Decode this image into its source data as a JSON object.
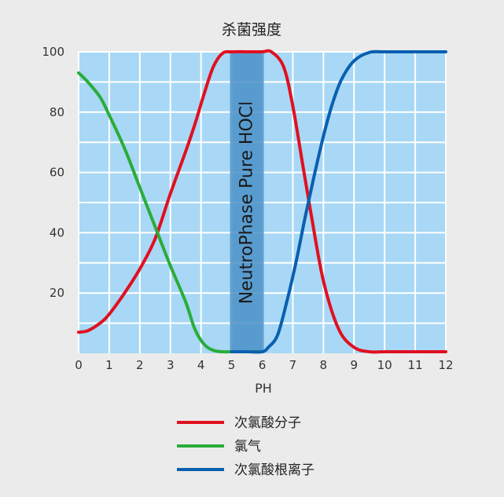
{
  "chart_data": {
    "type": "line",
    "title": "杀菌强度",
    "xlabel": "PH",
    "ylabel": "",
    "xlim": [
      0,
      12
    ],
    "ylim": [
      0,
      100
    ],
    "x_ticks": [
      0,
      1,
      2,
      3,
      4,
      5,
      6,
      7,
      8,
      9,
      10,
      11,
      12
    ],
    "y_ticks": [
      20,
      40,
      60,
      80,
      100
    ],
    "grid": true,
    "legend_position": "bottom",
    "colors": {
      "plot_background": "#a8d8f5",
      "grid": "#ffffff",
      "band": "#4a90c8"
    },
    "highlight_band": {
      "x_range": [
        5,
        6
      ],
      "label": "NeutroPhase Pure HOCl"
    },
    "series": [
      {
        "name": "次氯酸分子",
        "color": "#e01020",
        "x": [
          0,
          0.3,
          0.7,
          1,
          1.5,
          2,
          2.5,
          3,
          3.5,
          3.8,
          4.1,
          4.4,
          4.7,
          5,
          5.5,
          6,
          6.3,
          6.7,
          7,
          7.3,
          7.6,
          8,
          8.5,
          9,
          9.5,
          10,
          11,
          12
        ],
        "y": [
          7,
          7.5,
          10,
          13,
          20,
          28,
          38,
          53,
          67,
          76,
          86,
          95,
          99.5,
          100,
          100,
          100,
          100,
          95,
          82,
          64,
          46,
          24,
          8,
          2,
          0.5,
          0.5,
          0.5,
          0.5
        ]
      },
      {
        "name": "氯气",
        "color": "#2aac3a",
        "x": [
          0,
          0.3,
          0.7,
          1,
          1.5,
          2,
          2.5,
          3,
          3.5,
          3.8,
          4.1,
          4.4,
          4.7,
          5,
          6
        ],
        "y": [
          93,
          90,
          85,
          79,
          68,
          55,
          42,
          29,
          17,
          8,
          3,
          1,
          0.5,
          0.5,
          0.5
        ]
      },
      {
        "name": "次氯酸根离子",
        "color": "#0a5fb0",
        "x": [
          5,
          5.5,
          6,
          6.2,
          6.5,
          6.8,
          7.1,
          7.4,
          7.7,
          8,
          8.3,
          8.6,
          9,
          9.5,
          10,
          11,
          12
        ],
        "y": [
          0.5,
          0.5,
          0.5,
          2,
          6,
          17,
          30,
          45,
          59,
          72,
          83,
          91,
          97,
          99.8,
          100,
          100,
          100
        ]
      }
    ]
  }
}
